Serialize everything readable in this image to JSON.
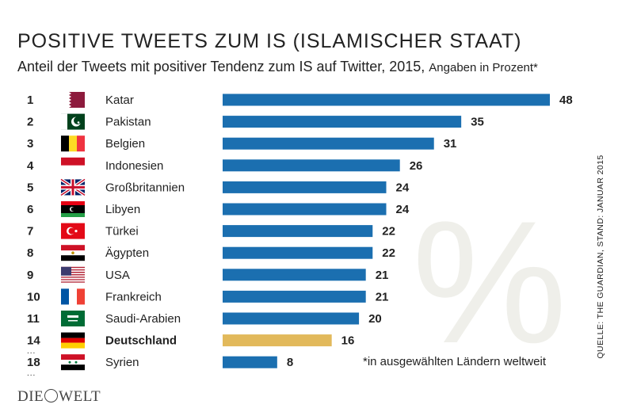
{
  "title": "POSITIVE TWEETS ZUM IS (ISLAMISCHER STAAT)",
  "subtitle": "Anteil der Tweets mit positiver Tendenz zum IS auf Twitter, 2015,",
  "unit_note": "Angaben in Prozent*",
  "footnote": "*in ausgewählten Ländern weltweit",
  "source": "QUELLE: THE GUARDIAN, STAND: JANUAR 2015",
  "logo": {
    "left": "DIE",
    "right": "WELT"
  },
  "ellipsis": "...",
  "colors": {
    "bar": "#1b6fb0",
    "highlight": "#e2b95b",
    "text": "#222222"
  },
  "chart_data": {
    "type": "bar",
    "orientation": "horizontal",
    "categories": [
      "Katar",
      "Pakistan",
      "Belgien",
      "Indonesien",
      "Großbritannien",
      "Libyen",
      "Türkei",
      "Ägypten",
      "USA",
      "Frankreich",
      "Saudi-Arabien",
      "Deutschland",
      "Syrien"
    ],
    "ranks": [
      "1",
      "2",
      "3",
      "4",
      "5",
      "6",
      "7",
      "8",
      "9",
      "10",
      "11",
      "14",
      "18"
    ],
    "values": [
      48,
      35,
      31,
      26,
      24,
      24,
      22,
      22,
      21,
      21,
      20,
      16,
      8
    ],
    "highlight": "Deutschland",
    "flags": [
      "flag-qatar-icon",
      "flag-pakistan-icon",
      "flag-belgium-icon",
      "flag-indonesia-icon",
      "flag-uk-icon",
      "flag-libya-icon",
      "flag-turkey-icon",
      "flag-egypt-icon",
      "flag-usa-icon",
      "flag-france-icon",
      "flag-saudi-arabia-icon",
      "flag-germany-icon",
      "flag-syria-icon"
    ],
    "xlim": [
      0,
      48
    ],
    "grid": false,
    "legend": "none"
  }
}
